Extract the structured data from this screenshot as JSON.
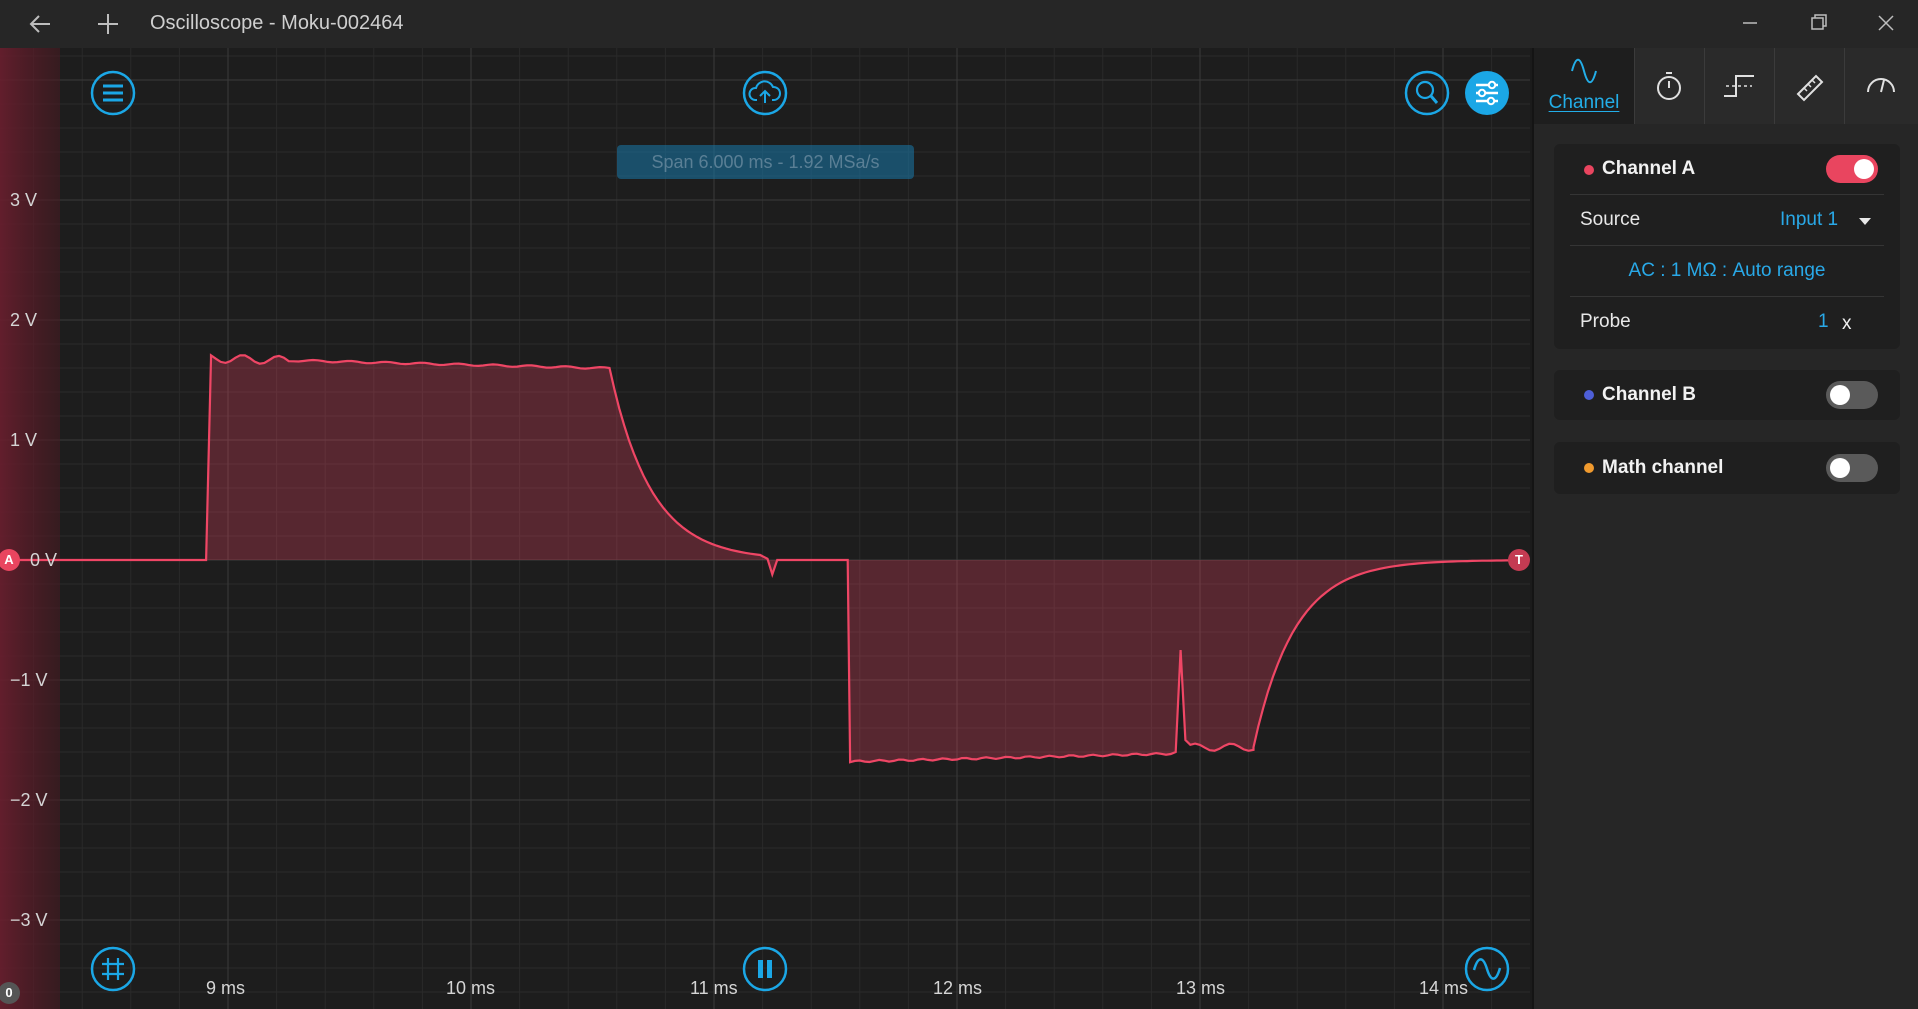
{
  "window": {
    "title": "Oscilloscope - Moku-002464"
  },
  "plot": {
    "span_text": "Span 6.000 ms - 1.92 MSa/s",
    "y_labels": [
      "3 V",
      "2 V",
      "1 V",
      "0 V",
      "−1 V",
      "−2 V",
      "−3 V"
    ],
    "x_labels": [
      "9 ms",
      "10 ms",
      "11 ms",
      "12 ms",
      "13 ms",
      "14 ms"
    ],
    "channel_marker": "A",
    "trigger_marker": "T",
    "bottom_marker": "0",
    "trace_color": "#ef4665"
  },
  "icons": {
    "menu": "menu-icon",
    "cloud": "cloud-upload-icon",
    "zoom": "zoom-icon",
    "settings": "sliders-icon",
    "grid": "grid-icon",
    "pause": "pause-icon",
    "waveform": "waveform-icon"
  },
  "side_panel": {
    "tabs": [
      {
        "label": "Channel",
        "icon": "sine-wave-icon",
        "active": true
      },
      {
        "label": "",
        "icon": "timer-icon"
      },
      {
        "label": "",
        "icon": "trigger-edge-icon"
      },
      {
        "label": "",
        "icon": "ruler-icon"
      },
      {
        "label": "",
        "icon": "gauge-icon"
      }
    ],
    "channel_a": {
      "name": "Channel A",
      "enabled": true,
      "color": "#e9455f",
      "source_label": "Source",
      "source_value": "Input 1",
      "coupling": "AC : 1 MΩ : Auto range",
      "probe_label": "Probe",
      "probe_value": "1",
      "probe_unit": "x"
    },
    "channel_b": {
      "name": "Channel B",
      "enabled": false,
      "color": "#4e5fd8"
    },
    "math_channel": {
      "name": "Math channel",
      "enabled": false,
      "color": "#f09a2e"
    }
  }
}
